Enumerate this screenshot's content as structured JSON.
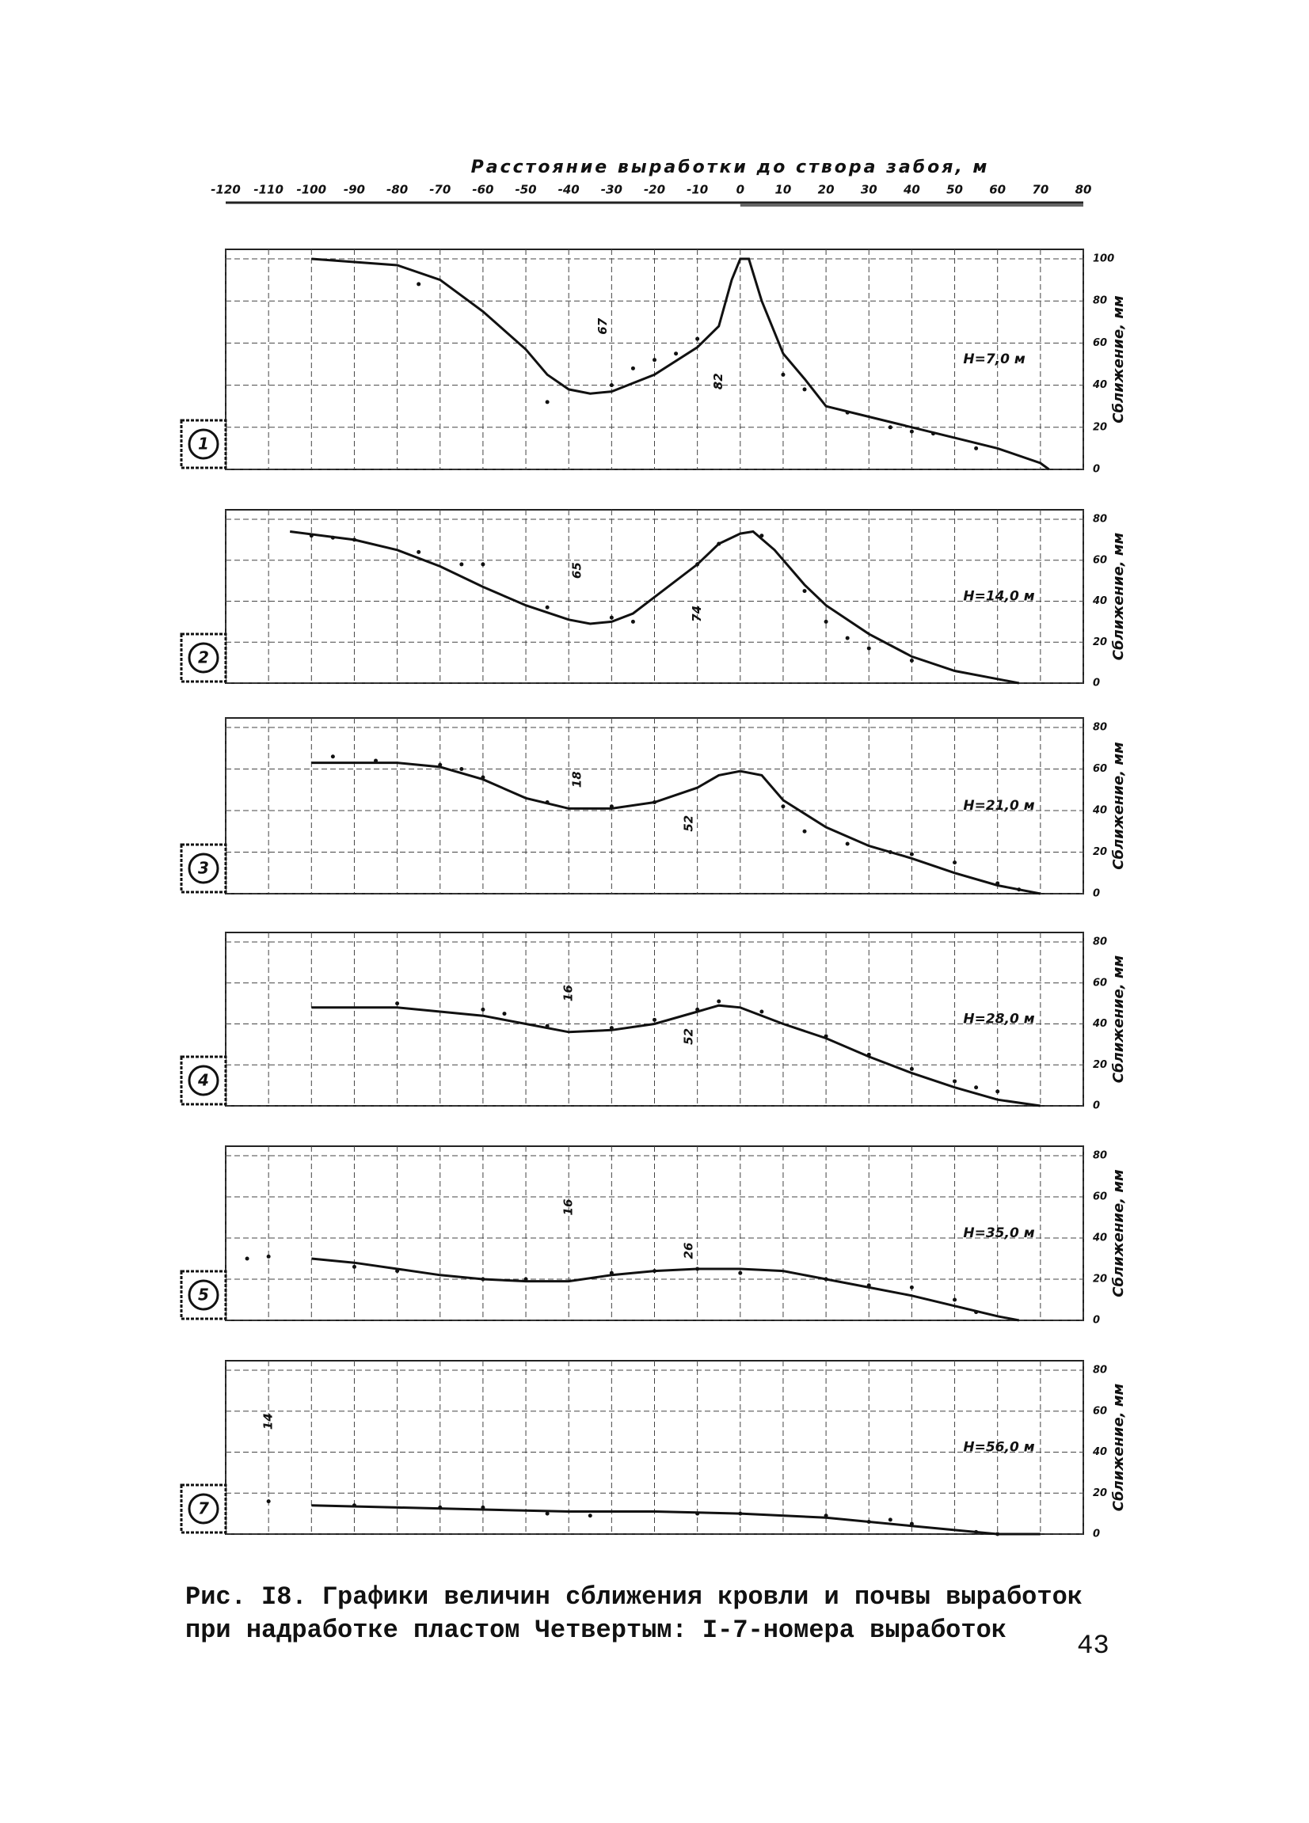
{
  "header": {
    "title": "Расстояние выработки до створа забоя, м",
    "xlim": [
      -120,
      80
    ],
    "xticks": [
      -120,
      -110,
      -100,
      -90,
      -80,
      -70,
      -60,
      -50,
      -40,
      -30,
      -20,
      -10,
      0,
      10,
      20,
      30,
      40,
      50,
      60,
      70,
      80
    ]
  },
  "chart_data": [
    {
      "type": "line",
      "working": "1",
      "label": "H=7,0 м",
      "ylabel": "Сближение, мм",
      "ylim": [
        0,
        100
      ],
      "yticks": [
        0,
        20,
        40,
        60,
        80,
        100
      ],
      "annotations": [
        "67",
        "82"
      ],
      "x": [
        -100,
        -80,
        -70,
        -60,
        -50,
        -45,
        -40,
        -35,
        -30,
        -20,
        -10,
        -5,
        -2,
        0,
        2,
        5,
        10,
        15,
        20,
        30,
        50,
        60,
        70,
        72
      ],
      "series": [
        {
          "color": "#111",
          "values": [
            100,
            97,
            90,
            75,
            57,
            45,
            38,
            36,
            37,
            45,
            58,
            68,
            90,
            100,
            100,
            80,
            55,
            43,
            30,
            25,
            15,
            10,
            3,
            0
          ]
        }
      ],
      "points": {
        "x": [
          -75,
          -45,
          -30,
          -25,
          -20,
          -15,
          -10,
          10,
          15,
          25,
          35,
          40,
          45,
          55
        ],
        "y": [
          88,
          32,
          40,
          48,
          52,
          55,
          62,
          45,
          38,
          27,
          20,
          18,
          17,
          10
        ]
      }
    },
    {
      "type": "line",
      "working": "2",
      "label": "H=14,0 м",
      "ylabel": "Сближение, мм",
      "ylim": [
        0,
        80
      ],
      "yticks": [
        0,
        20,
        40,
        60,
        80
      ],
      "annotations": [
        "65",
        "74"
      ],
      "x": [
        -105,
        -90,
        -80,
        -70,
        -60,
        -50,
        -40,
        -35,
        -30,
        -25,
        -20,
        -10,
        -5,
        0,
        3,
        8,
        15,
        20,
        30,
        40,
        50,
        60,
        65
      ],
      "series": [
        {
          "color": "#111",
          "values": [
            74,
            70,
            65,
            57,
            47,
            38,
            31,
            29,
            30,
            34,
            42,
            58,
            68,
            73,
            74,
            65,
            48,
            38,
            24,
            13,
            6,
            2,
            0
          ]
        }
      ],
      "points": {
        "x": [
          -100,
          -95,
          -90,
          -75,
          -65,
          -60,
          -45,
          -30,
          -25,
          -10,
          -5,
          5,
          15,
          20,
          25,
          30,
          40
        ],
        "y": [
          72,
          71,
          70,
          64,
          58,
          58,
          37,
          32,
          30,
          58,
          68,
          72,
          45,
          30,
          22,
          17,
          11
        ]
      }
    },
    {
      "type": "line",
      "working": "3",
      "label": "H=21,0 м",
      "ylabel": "Сближение, мм",
      "ylim": [
        0,
        80
      ],
      "yticks": [
        0,
        20,
        40,
        60,
        80
      ],
      "annotations": [
        "18",
        "52"
      ],
      "x": [
        -100,
        -80,
        -70,
        -60,
        -50,
        -40,
        -30,
        -20,
        -10,
        -5,
        0,
        5,
        10,
        20,
        30,
        40,
        50,
        60,
        70
      ],
      "series": [
        {
          "color": "#111",
          "values": [
            63,
            63,
            61,
            55,
            46,
            41,
            41,
            44,
            51,
            57,
            59,
            57,
            45,
            32,
            23,
            17,
            10,
            4,
            0
          ]
        }
      ],
      "points": {
        "x": [
          -95,
          -85,
          -70,
          -65,
          -60,
          -45,
          -30,
          -20,
          10,
          15,
          25,
          35,
          40,
          50,
          60,
          65
        ],
        "y": [
          66,
          64,
          62,
          60,
          56,
          44,
          42,
          44,
          42,
          30,
          24,
          20,
          19,
          15,
          5,
          2
        ]
      }
    },
    {
      "type": "line",
      "working": "4",
      "label": "H=28,0 м",
      "ylabel": "Сближение, мм",
      "ylim": [
        0,
        80
      ],
      "yticks": [
        0,
        20,
        40,
        60,
        80
      ],
      "annotations": [
        "16",
        "52"
      ],
      "x": [
        -100,
        -80,
        -70,
        -60,
        -50,
        -40,
        -30,
        -20,
        -10,
        -5,
        0,
        10,
        20,
        30,
        40,
        50,
        60,
        70
      ],
      "series": [
        {
          "color": "#111",
          "values": [
            48,
            48,
            46,
            44,
            40,
            36,
            37,
            40,
            46,
            49,
            48,
            40,
            33,
            24,
            16,
            9,
            3,
            0
          ]
        }
      ],
      "points": {
        "x": [
          -80,
          -60,
          -55,
          -45,
          -30,
          -20,
          -10,
          -5,
          5,
          20,
          30,
          40,
          50,
          55,
          60
        ],
        "y": [
          50,
          47,
          45,
          39,
          38,
          42,
          47,
          51,
          46,
          34,
          25,
          18,
          12,
          9,
          7
        ]
      }
    },
    {
      "type": "line",
      "working": "5",
      "label": "H=35,0 м",
      "ylabel": "Сближение, мм",
      "ylim": [
        0,
        80
      ],
      "yticks": [
        0,
        20,
        40,
        60,
        80
      ],
      "annotations": [
        "16",
        "26"
      ],
      "x": [
        -100,
        -90,
        -80,
        -70,
        -60,
        -50,
        -40,
        -30,
        -20,
        -10,
        0,
        10,
        20,
        30,
        40,
        50,
        60,
        65
      ],
      "series": [
        {
          "color": "#111",
          "values": [
            30,
            28,
            25,
            22,
            20,
            19,
            19,
            22,
            24,
            25,
            25,
            24,
            20,
            16,
            12,
            7,
            2,
            0
          ]
        }
      ],
      "points": {
        "x": [
          -115,
          -110,
          -90,
          -80,
          -60,
          -50,
          -30,
          -20,
          -10,
          0,
          20,
          30,
          40,
          50,
          55
        ],
        "y": [
          30,
          31,
          26,
          24,
          20,
          20,
          23,
          24,
          25,
          23,
          20,
          17,
          16,
          10,
          4
        ]
      }
    },
    {
      "type": "line",
      "working": "7",
      "label": "H=56,0 м",
      "ylabel": "Сближение, мм",
      "ylim": [
        0,
        80
      ],
      "yticks": [
        0,
        20,
        40,
        60,
        80
      ],
      "annotations": [
        "14"
      ],
      "x": [
        -100,
        -80,
        -60,
        -40,
        -20,
        0,
        20,
        40,
        60,
        70
      ],
      "series": [
        {
          "color": "#111",
          "values": [
            14,
            13,
            12,
            11,
            11,
            10,
            8,
            4,
            0,
            0
          ]
        }
      ],
      "points": {
        "x": [
          -110,
          -90,
          -70,
          -60,
          -45,
          -35,
          -10,
          0,
          20,
          30,
          35,
          40,
          55,
          60
        ],
        "y": [
          16,
          14,
          13,
          13,
          10,
          9,
          10,
          10,
          9,
          6,
          7,
          5,
          1,
          0
        ]
      }
    }
  ],
  "caption": {
    "line1": "Рис. I8. Графики величин сближения кровли и почвы выработок",
    "line2": "при надработке пластом Четвертым: I-7-номера выработок",
    "page_number": "43"
  }
}
